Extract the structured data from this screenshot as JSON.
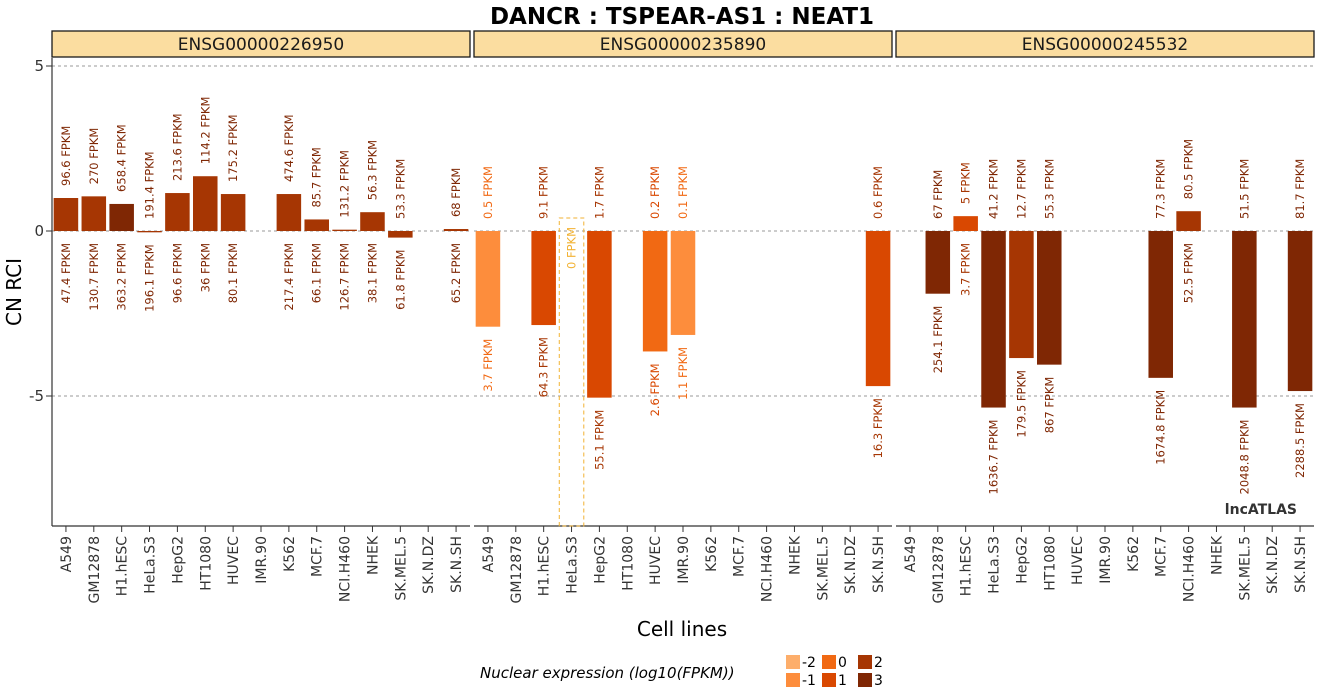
{
  "chart_data": {
    "type": "bar",
    "title": "DANCR : TSPEAR-AS1 : NEAT1",
    "xlabel": "Cell lines",
    "ylabel": "CN RCI",
    "ylim": [
      -9,
      5.4
    ],
    "yticks": [
      5,
      0,
      -5
    ],
    "grid": "dashed horizontal",
    "categories": [
      "A549",
      "GM12878",
      "H1.hESC",
      "HeLa.S3",
      "HepG2",
      "HT1080",
      "HUVEC",
      "IMR.90",
      "K562",
      "MCF.7",
      "NCI.H460",
      "NHEK",
      "SK.MEL.5",
      "SK.N.DZ",
      "SK.N.SH"
    ],
    "watermark": "lncATLAS",
    "colors": {
      "-2": "#FDAE6B",
      "-1": "#FD8D3C",
      "0": "#F16913",
      "1": "#D94801",
      "2": "#A63603",
      "3": "#7F2704"
    },
    "panels": [
      {
        "gene": "ENSG00000226950",
        "values": [
          1.0,
          1.05,
          0.82,
          -0.04,
          1.15,
          1.66,
          1.12,
          null,
          1.12,
          0.35,
          0.04,
          0.57,
          -0.2,
          null,
          0.06
        ],
        "log_level": [
          2,
          2,
          3,
          2,
          2,
          2,
          2,
          null,
          2,
          2,
          2,
          2,
          2,
          null,
          2
        ],
        "nuclear_labels": [
          "96.6 FPKM",
          "270 FPKM",
          "658.4 FPKM",
          "191.4 FPKM",
          "213.6 FPKM",
          "114.2 FPKM",
          "175.2 FPKM",
          null,
          "474.6 FPKM",
          "85.7 FPKM",
          "131.2 FPKM",
          "56.3 FPKM",
          "53.3 FPKM",
          null,
          "68 FPKM"
        ],
        "cytoplasm_labels": [
          "47.4 FPKM",
          "130.7 FPKM",
          "363.2 FPKM",
          "196.1 FPKM",
          "96.6 FPKM",
          "36 FPKM",
          "80.1 FPKM",
          null,
          "217.4 FPKM",
          "66.1 FPKM",
          "126.7 FPKM",
          "38.1 FPKM",
          "61.8 FPKM",
          null,
          "65.2 FPKM"
        ]
      },
      {
        "gene": "ENSG00000235890",
        "values": [
          -2.9,
          null,
          -2.85,
          null,
          -5.05,
          null,
          -3.65,
          -3.15,
          null,
          null,
          null,
          null,
          null,
          null,
          -4.7
        ],
        "log_level": [
          -1,
          null,
          1,
          null,
          1,
          null,
          0,
          -1,
          null,
          null,
          null,
          null,
          null,
          null,
          1
        ],
        "nuclear_labels": [
          "0.5 FPKM",
          null,
          "9.1 FPKM",
          null,
          "1.7 FPKM",
          null,
          "0.2 FPKM",
          "0.1 FPKM",
          null,
          null,
          null,
          null,
          null,
          null,
          "0.6 FPKM"
        ],
        "cytoplasm_labels": [
          "3.7 FPKM",
          null,
          "64.3 FPKM",
          null,
          "55.1 FPKM",
          null,
          "2.6 FPKM",
          "1.1 FPKM",
          null,
          null,
          null,
          null,
          null,
          null,
          "16.3 FPKM"
        ],
        "zero_marker": {
          "index": 3,
          "label": "0 FPKM"
        }
      },
      {
        "gene": "ENSG00000245532",
        "values": [
          null,
          -1.9,
          0.45,
          -5.35,
          -3.85,
          -4.05,
          null,
          null,
          null,
          -4.45,
          0.6,
          null,
          -5.35,
          null,
          -4.85
        ],
        "log_level": [
          null,
          3,
          1,
          3,
          2,
          3,
          null,
          null,
          null,
          3,
          2,
          null,
          3,
          null,
          3
        ],
        "nuclear_labels": [
          null,
          "67 FPKM",
          "5 FPKM",
          "41.2 FPKM",
          "12.7 FPKM",
          "55.3 FPKM",
          null,
          null,
          null,
          "77.3 FPKM",
          "80.5 FPKM",
          null,
          "51.5 FPKM",
          null,
          "81.7 FPKM"
        ],
        "cytoplasm_labels": [
          null,
          "254.1 FPKM",
          "3.7 FPKM",
          "1636.7 FPKM",
          "179.5 FPKM",
          "867 FPKM",
          null,
          null,
          null,
          "1674.8 FPKM",
          "52.5 FPKM",
          null,
          "2048.8 FPKM",
          null,
          "2288.5 FPKM"
        ]
      }
    ],
    "legend": {
      "title": "Nuclear expression (log10(FPKM))",
      "placement": "bottom",
      "items": [
        "-2",
        "-1",
        "0",
        "1",
        "2",
        "3"
      ]
    }
  }
}
